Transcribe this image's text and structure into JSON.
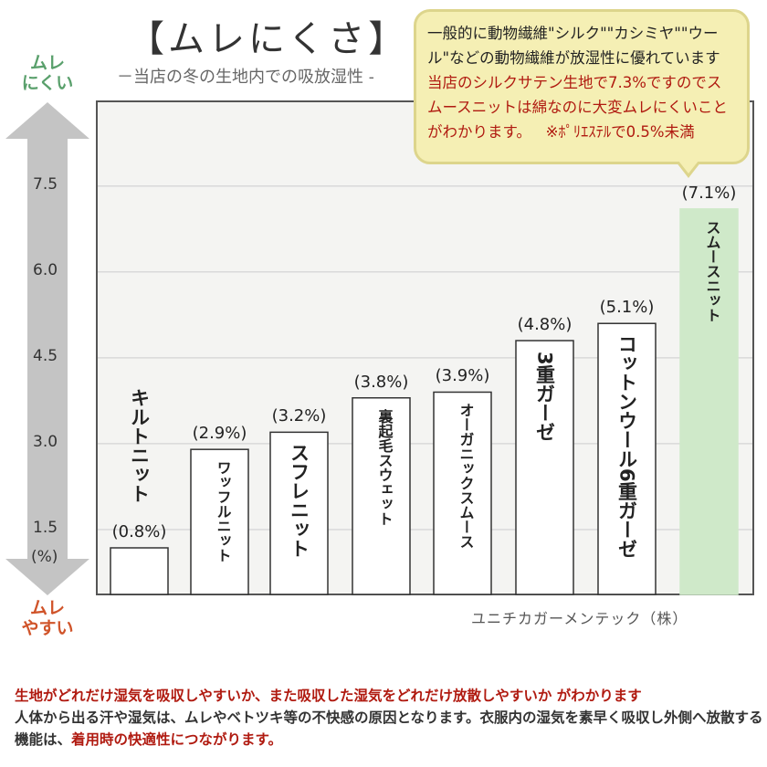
{
  "title": "【ムレにくさ】",
  "subtitle": "－当店の冬の生地内での吸放湿性 -",
  "arrow_top_label": [
    "ムレ",
    "にくい"
  ],
  "arrow_bottom_label": [
    "ムレ",
    "やすい"
  ],
  "callout": {
    "black": "一般的に動物繊維\"シルク\"\"カシミヤ\"\"ウール\"などの動物繊維が放湿性に優れています ",
    "red": "当店のシルクサテン生地で7.3%ですのでスムースニットは綿なのに大変ムレにくいことがわかります。",
    "note": "※ﾎﾟﾘｴｽﾃﾙで0.5%未満"
  },
  "credit": "ユニチカガーメンテック（株）",
  "footer": {
    "line1_red": "生地がどれだけ湿気を吸収しやすいか、また吸収した湿気をどれだけ放散しやすいか がわかります",
    "line2": "人体から出る汗や湿気は、ムレやベトツキ等の不快感の原因となります。衣服内の湿気を素早く吸収し外側へ放散する機能は、",
    "line2_red": "着用時の快適性につながります。"
  },
  "colors": {
    "bar": "#ffffff",
    "highlight_bar": "#cfe9c9",
    "plot_bg": "#f4f4f2",
    "grid": "#d9d9d9",
    "accent_red": "#b01a10",
    "green": "#5aa06c"
  },
  "chart_data": {
    "type": "bar",
    "categories": [
      "キルトニット",
      "ワッフルニット",
      "スフレニット",
      "裏起毛スウェット",
      "オーガニックスムース",
      "3重ガーゼ",
      "コットンウール6重ガーゼ",
      "スムースニット"
    ],
    "values": [
      0.8,
      2.9,
      3.2,
      3.8,
      3.9,
      4.8,
      5.1,
      7.1
    ],
    "data_labels": [
      "(0.8%)",
      "(2.9%)",
      "(3.2%)",
      "(3.8%)",
      "(3.9%)",
      "(4.8%)",
      "(5.1%)",
      "(7.1%)"
    ],
    "highlight_index": 7,
    "yticks": [
      "1.5",
      "3.0",
      "4.5",
      "6.0",
      "7.5"
    ],
    "ylabel": "(%)",
    "ylim": [
      0,
      8.5
    ],
    "grid": true
  }
}
